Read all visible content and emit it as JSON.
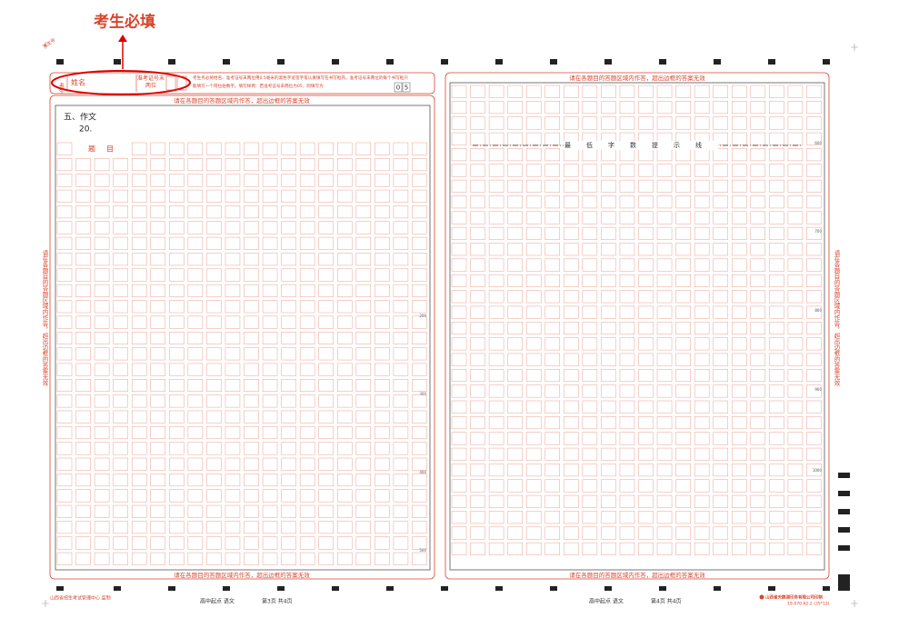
{
  "annotation": "考生必填",
  "corner_label": "考生号",
  "header": {
    "label": "考生",
    "name_label": "姓名",
    "exam_no_label": "准考证号末两位",
    "instructions": "考生务必将姓名、准考证号末两位用0.5毫米的黑色字迹签字笔认真填写在书写框内，准考证号末两位的每个书写框只能填写一个阿拉伯数字。填写样例：若准考证号末两位为05，则填写为",
    "sample_digits": [
      "0",
      "5"
    ]
  },
  "notice": "请在各题目的答题区域内作答，超出边框的答案无效",
  "question": {
    "section": "五、作文",
    "number": "20.",
    "title_label": "题目"
  },
  "word_counts_left": [
    "200",
    "300",
    "400",
    "500"
  ],
  "word_counts_right": [
    "600",
    "700",
    "800",
    "900",
    "1000"
  ],
  "min_line": "最低字数提示线",
  "footer": {
    "issuer": "山西省招生考试管理中心 监制",
    "left_subject": "高中起点 语文",
    "left_page": "第3页 共4页",
    "right_subject": "高中起点 语文",
    "right_page": "第4页 共4页",
    "printer": "山西省天鹅湖印务有限公司印制",
    "code": "19-070-62-2 (35*13)"
  }
}
